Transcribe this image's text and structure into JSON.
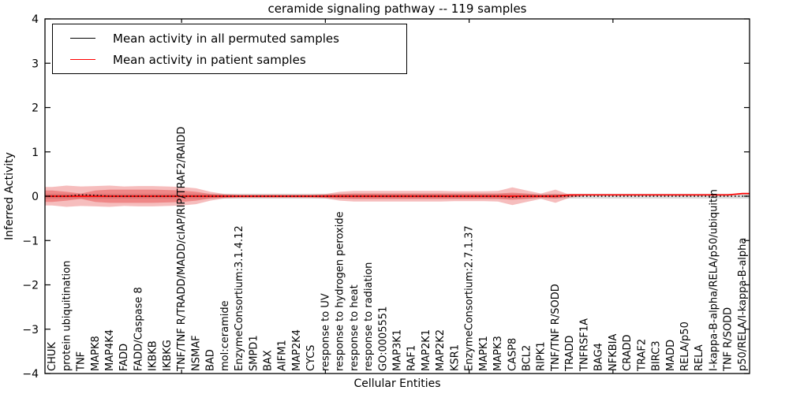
{
  "title": "ceramide signaling pathway -- 119 samples",
  "axes": {
    "xlabel": "Cellular Entities",
    "ylabel": "Inferred Activity"
  },
  "legend": {
    "items": [
      {
        "label": "Mean activity in all permuted samples",
        "color": "#000000"
      },
      {
        "label": "Mean activity in patient samples",
        "color": "#ff0000"
      }
    ]
  },
  "chart_data": {
    "type": "line",
    "title": "ceramide signaling pathway -- 119 samples",
    "xlabel": "Cellular Entities",
    "ylabel": "Inferred Activity",
    "ylim": [
      -4,
      4
    ],
    "yticks": [
      -4,
      -3,
      -2,
      -1,
      0,
      1,
      2,
      3,
      4
    ],
    "xticks_at_category_index": [
      9,
      19,
      29,
      39
    ],
    "legend_position": "upper left",
    "grid": false,
    "categories": [
      "CHUK",
      "protein ubiquitination",
      "TNF",
      "MAPK8",
      "MAP4K4",
      "FADD",
      "FADD/Caspase 8",
      "IKBKB",
      "IKBKG",
      "TNF/TNF R/TRADD/MADD/cIAP/RIP/TRAF2/RAIDD",
      "NSMAF",
      "BAD",
      "mol:ceramide",
      "EnzymeConsortium:3.1.4.12",
      "SMPD1",
      "BAX",
      "AIFM1",
      "MAP2K4",
      "CYCS",
      "response to UV",
      "response to hydrogen peroxide",
      "response to heat",
      "response to radiation",
      "GO:0005551",
      "MAP3K1",
      "RAF1",
      "MAP2K1",
      "MAP2K2",
      "KSR1",
      "EnzymeConsortium:2.7.1.37",
      "MAPK1",
      "MAPK3",
      "CASP8",
      "BCL2",
      "RIPK1",
      "TNF/TNF R/SODD",
      "TRADD",
      "TNFRSF1A",
      "BAG4",
      "NFKBIA",
      "CRADD",
      "TRAF2",
      "BIRC3",
      "MADD",
      "RELA/p50",
      "RELA",
      "I-kappa-B-alpha/RELA/p50/ubiquitin",
      "TNF R/SODD",
      "p50/RELA/I-kappa-B-alpha"
    ],
    "series": [
      {
        "name": "Mean activity in all permuted samples",
        "color": "#000000",
        "style": "dotted",
        "values": [
          0,
          0,
          0.03,
          0.02,
          0,
          0,
          0,
          0,
          0,
          0,
          0,
          0,
          0,
          0,
          0,
          0,
          0,
          0,
          0,
          0,
          0,
          0,
          0,
          0,
          0,
          0,
          0,
          0,
          0,
          0,
          0,
          0,
          -0.02,
          0,
          0,
          0,
          0,
          0,
          0,
          0,
          0,
          0,
          0,
          0,
          0,
          0,
          0,
          0,
          0
        ]
      },
      {
        "name": "Mean activity in patient samples",
        "color": "#ff0000",
        "style": "solid",
        "values": [
          0,
          0,
          0,
          0,
          0,
          0,
          0,
          0,
          0,
          0,
          0,
          0,
          0,
          0,
          0,
          0,
          0,
          0,
          0,
          0,
          0,
          0,
          0,
          0,
          0,
          0,
          0,
          0,
          0,
          0,
          0,
          0,
          0,
          0,
          0,
          0,
          0.03,
          0.03,
          0.03,
          0.03,
          0.03,
          0.03,
          0.03,
          0.03,
          0.03,
          0.03,
          0.03,
          0.03,
          0.06
        ]
      }
    ],
    "bands": [
      {
        "name": "permuted-samples-range",
        "color": "rgba(60,60,60,0.18)",
        "center": 0,
        "half_widths": [
          0.055,
          0.055,
          0.055,
          0.055,
          0.055,
          0.055,
          0.055,
          0.055,
          0.055,
          0.055,
          0.055,
          0.055,
          0.055,
          0.055,
          0.055,
          0.055,
          0.055,
          0.055,
          0.055,
          0.055,
          0.055,
          0.055,
          0.055,
          0.055,
          0.055,
          0.055,
          0.055,
          0.055,
          0.055,
          0.055,
          0.055,
          0.055,
          0.055,
          0.055,
          0.055,
          0.055,
          0.055,
          0.055,
          0.055,
          0.055,
          0.055,
          0.055,
          0.055,
          0.055,
          0.055,
          0.055,
          0.055,
          0.055,
          0.055
        ]
      },
      {
        "name": "patient-samples-outer-range",
        "color": "rgba(225,35,35,0.30)",
        "center": 0,
        "half_widths": [
          0.21,
          0.24,
          0.22,
          0.23,
          0.24,
          0.22,
          0.23,
          0.23,
          0.22,
          0.21,
          0.18,
          0.1,
          0.05,
          0.04,
          0.04,
          0.04,
          0.04,
          0.04,
          0.04,
          0.05,
          0.1,
          0.12,
          0.12,
          0.12,
          0.12,
          0.12,
          0.12,
          0.12,
          0.11,
          0.11,
          0.11,
          0.12,
          0.2,
          0.13,
          0.06,
          0.15,
          0.03,
          0,
          0,
          0,
          0,
          0,
          0,
          0,
          0,
          0,
          0,
          0,
          0
        ]
      },
      {
        "name": "patient-samples-inner-range",
        "color": "rgba(225,35,35,0.35)",
        "center": 0,
        "half_widths": [
          0.13,
          0.1,
          0.06,
          0.13,
          0.15,
          0.15,
          0.15,
          0.15,
          0.14,
          0.13,
          0.1,
          0.05,
          0.03,
          0.02,
          0.02,
          0.02,
          0.02,
          0.02,
          0.02,
          0.03,
          0.05,
          0.06,
          0.06,
          0.06,
          0.06,
          0.06,
          0.06,
          0.06,
          0.06,
          0.06,
          0.06,
          0.06,
          0.08,
          0.06,
          0.03,
          0.05,
          0.01,
          0,
          0,
          0,
          0,
          0,
          0,
          0,
          0,
          0,
          0,
          0,
          0
        ]
      }
    ]
  }
}
